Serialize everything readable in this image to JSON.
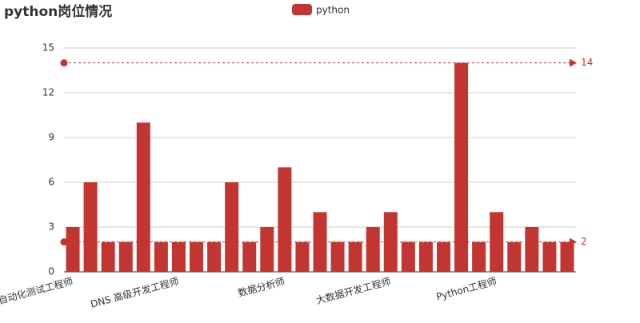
{
  "chart_data": {
    "type": "bar",
    "title": "python岗位情况",
    "categories": [
      "自动化测试工程师",
      null,
      null,
      null,
      null,
      null,
      "DNS 高级开发工程师",
      null,
      null,
      null,
      null,
      null,
      "数据分析师",
      null,
      null,
      null,
      null,
      null,
      "大数据开发工程师",
      null,
      null,
      null,
      null,
      null,
      "Python工程师",
      null,
      null,
      null,
      null
    ],
    "series": [
      {
        "name": "python",
        "color": "#c23531",
        "values": [
          3,
          6,
          2,
          2,
          10,
          2,
          2,
          2,
          2,
          6,
          2,
          3,
          7,
          2,
          4,
          2,
          2,
          3,
          4,
          2,
          2,
          2,
          14,
          2,
          4,
          2,
          3,
          2,
          2
        ]
      }
    ],
    "mark_lines": [
      14,
      2
    ],
    "ylim": [
      0,
      15
    ],
    "yticks": [
      0,
      3,
      6,
      9,
      12,
      15
    ],
    "grid": true
  }
}
